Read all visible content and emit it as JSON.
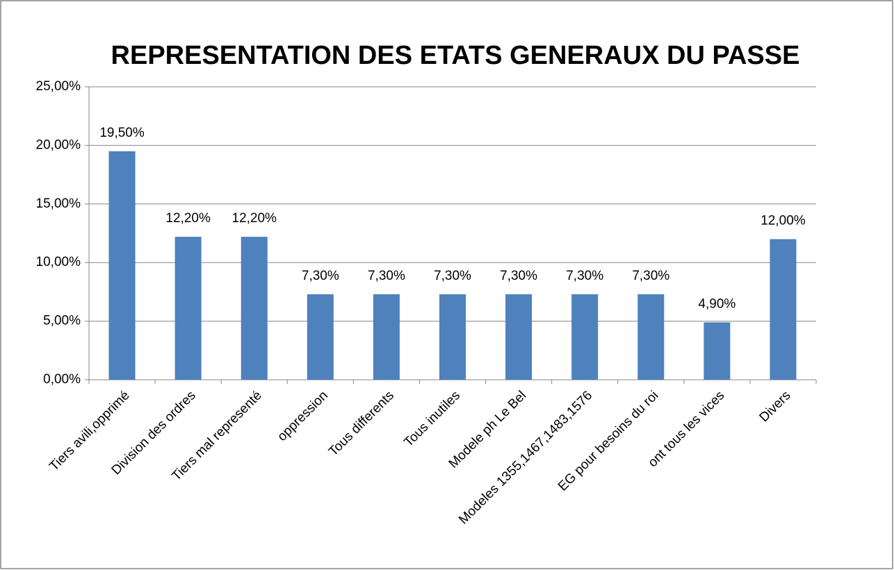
{
  "chart_data": {
    "type": "bar",
    "title": "REPRESENTATION DES ETATS GENERAUX DU PASSE",
    "categories": [
      "Tiers avili,opprimé",
      "Division des ordres",
      "Tiers mal representé",
      "oppression",
      "Tous differents",
      "Tous inutiles",
      "Modele ph Le Bel",
      "Modeles 1355,1467,1483,1576",
      "EG pour besoins du roi",
      "ont tous les vices",
      "Divers"
    ],
    "values": [
      19.5,
      12.2,
      12.2,
      7.3,
      7.3,
      7.3,
      7.3,
      7.3,
      7.3,
      4.9,
      12.0
    ],
    "value_labels": [
      "19,50%",
      "12,20%",
      "12,20%",
      "7,30%",
      "7,30%",
      "7,30%",
      "7,30%",
      "7,30%",
      "7,30%",
      "4,90%",
      "12,00%"
    ],
    "color": "#4f81bd",
    "ylim": [
      0,
      25
    ],
    "yticks": [
      {
        "value": 0,
        "label": "0,00%"
      },
      {
        "value": 5,
        "label": "5,00%"
      },
      {
        "value": 10,
        "label": "10,00%"
      },
      {
        "value": 15,
        "label": "15,00%"
      },
      {
        "value": 20,
        "label": "20,00%"
      },
      {
        "value": 25,
        "label": "25,00%"
      }
    ],
    "grid": true
  }
}
